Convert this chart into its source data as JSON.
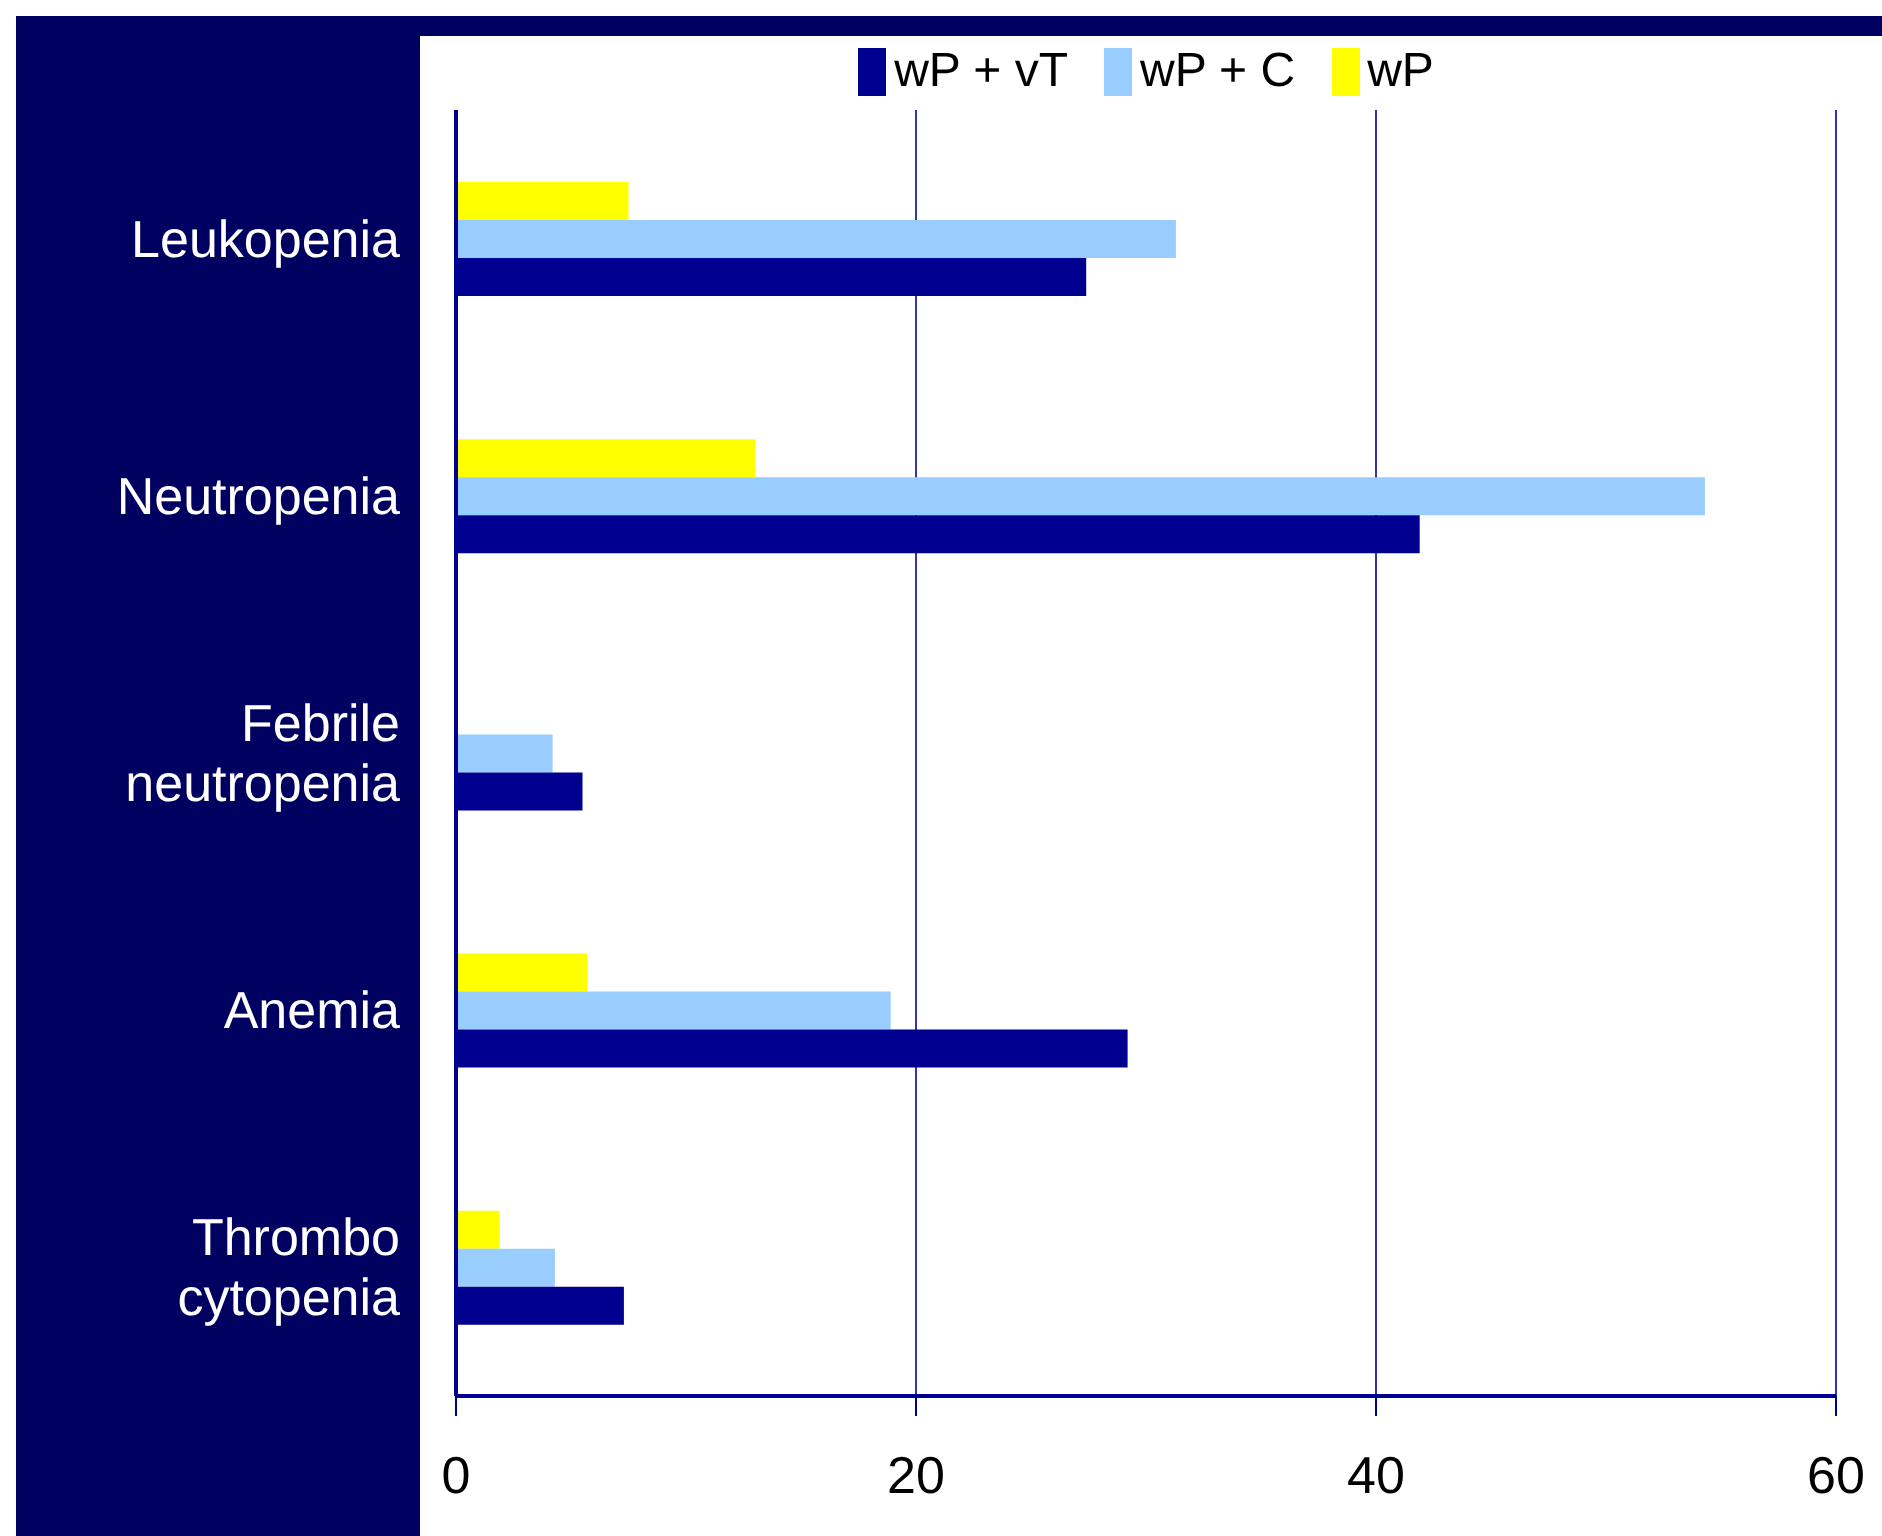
{
  "chart_data": {
    "type": "bar",
    "orientation": "horizontal",
    "categories": [
      "Leukopenia",
      "Neutropenia",
      "Febrile neutropenia",
      "Anemia",
      "Thrombo cytopenia"
    ],
    "series": [
      {
        "name": "wP + vT",
        "color": "#000090",
        "values": [
          27.4,
          41.9,
          5.5,
          29.2,
          7.3
        ]
      },
      {
        "name": "wP + C",
        "color": "#99ccff",
        "values": [
          31.3,
          54.3,
          4.2,
          18.9,
          4.3
        ]
      },
      {
        "name": "wP",
        "color": "#ffff00",
        "values": [
          7.5,
          13,
          null,
          5.7,
          1.9
        ]
      }
    ],
    "xlim": [
      0,
      60
    ],
    "xticks": [
      0,
      20,
      40,
      60
    ],
    "grid": "x",
    "legend": "top"
  }
}
